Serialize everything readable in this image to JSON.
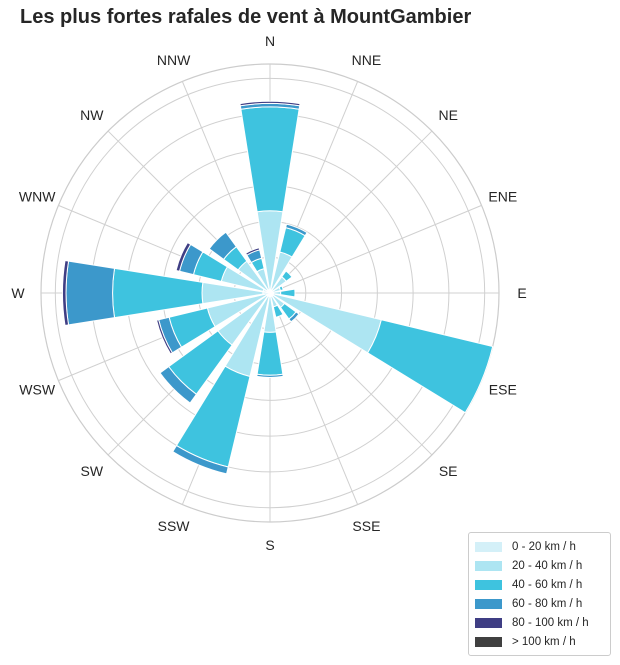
{
  "chart_data": {
    "type": "windrose",
    "title": "Les plus fortes rafales de vent à MountGambier",
    "directions": [
      "N",
      "NNE",
      "NE",
      "ENE",
      "E",
      "ESE",
      "SE",
      "SSE",
      "S",
      "SSW",
      "SW",
      "WSW",
      "W",
      "WNW",
      "NW",
      "NNW"
    ],
    "radial_max": 3.2,
    "radial_ticks": [
      0.5,
      1.0,
      1.5,
      2.0,
      2.5,
      3.0
    ],
    "legend_placement": "bottom-right",
    "grid": true,
    "series": [
      {
        "name": "0 - 20 km / h",
        "color": "#d4f0f8",
        "values": [
          0.05,
          0.04,
          0.03,
          0.03,
          0.05,
          0.05,
          0.05,
          0.05,
          0.05,
          0.05,
          0.05,
          0.05,
          0.1,
          0.1,
          0.05,
          0.05
        ]
      },
      {
        "name": "20 - 40 km / h",
        "color": "#ade5f2",
        "values": [
          1.1,
          0.55,
          0.25,
          0.12,
          0.1,
          1.55,
          0.2,
          0.15,
          0.5,
          1.15,
          0.85,
          0.85,
          0.85,
          0.6,
          0.5,
          0.3
        ]
      },
      {
        "name": "40 - 60 km / h",
        "color": "#3ec3df",
        "values": [
          1.45,
          0.35,
          0.1,
          0.04,
          0.2,
          1.6,
          0.2,
          0.15,
          0.6,
          1.3,
          0.85,
          0.55,
          1.25,
          0.4,
          0.25,
          0.15
        ]
      },
      {
        "name": "60 - 80 km / h",
        "color": "#3c98cb",
        "values": [
          0.05,
          0.05,
          0.0,
          0.0,
          0.0,
          0.0,
          0.05,
          0.0,
          0.03,
          0.1,
          0.15,
          0.15,
          0.65,
          0.2,
          0.25,
          0.12
        ]
      },
      {
        "name": "80 - 100 km / h",
        "color": "#3f3e84",
        "values": [
          0.03,
          0.0,
          0.0,
          0.0,
          0.0,
          0.0,
          0.0,
          0.0,
          0.0,
          0.0,
          0.0,
          0.03,
          0.05,
          0.05,
          0.0,
          0.03
        ]
      },
      {
        "name": "> 100 km / h",
        "color": "#404040",
        "values": [
          0,
          0,
          0,
          0,
          0,
          0,
          0,
          0,
          0,
          0,
          0,
          0,
          0,
          0,
          0,
          0
        ]
      }
    ]
  }
}
